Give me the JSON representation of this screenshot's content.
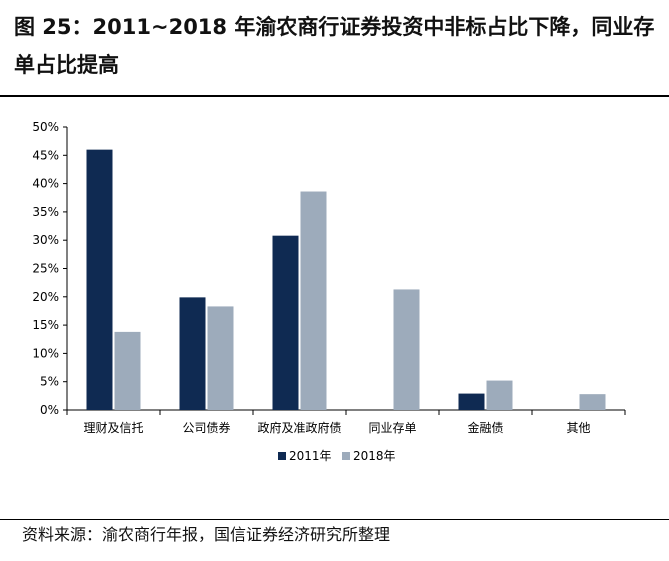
{
  "figure": {
    "title": "图 25：2011~2018 年渝农商行证券投资中非标占比下降，同业存单占比提高",
    "source": "资料来源：渝农商行年报，国信证券经济研究所整理"
  },
  "chart_data": {
    "type": "bar",
    "categories": [
      "理财及信托",
      "公司债券",
      "政府及准政府债",
      "同业存单",
      "金融债",
      "其他"
    ],
    "series": [
      {
        "name": "2011年",
        "color": "#0f2a52",
        "values": [
          46.0,
          19.9,
          30.8,
          0.0,
          2.9,
          0.0
        ]
      },
      {
        "name": "2018年",
        "color": "#9dabbb",
        "values": [
          13.8,
          18.3,
          38.6,
          21.3,
          5.2,
          2.8
        ]
      }
    ],
    "ylim": [
      0,
      50
    ],
    "yticks": [
      "0%",
      "5%",
      "10%",
      "15%",
      "20%",
      "25%",
      "30%",
      "35%",
      "40%",
      "45%",
      "50%"
    ],
    "grid": false,
    "legend": "bottom",
    "xlabel": "",
    "ylabel": ""
  }
}
